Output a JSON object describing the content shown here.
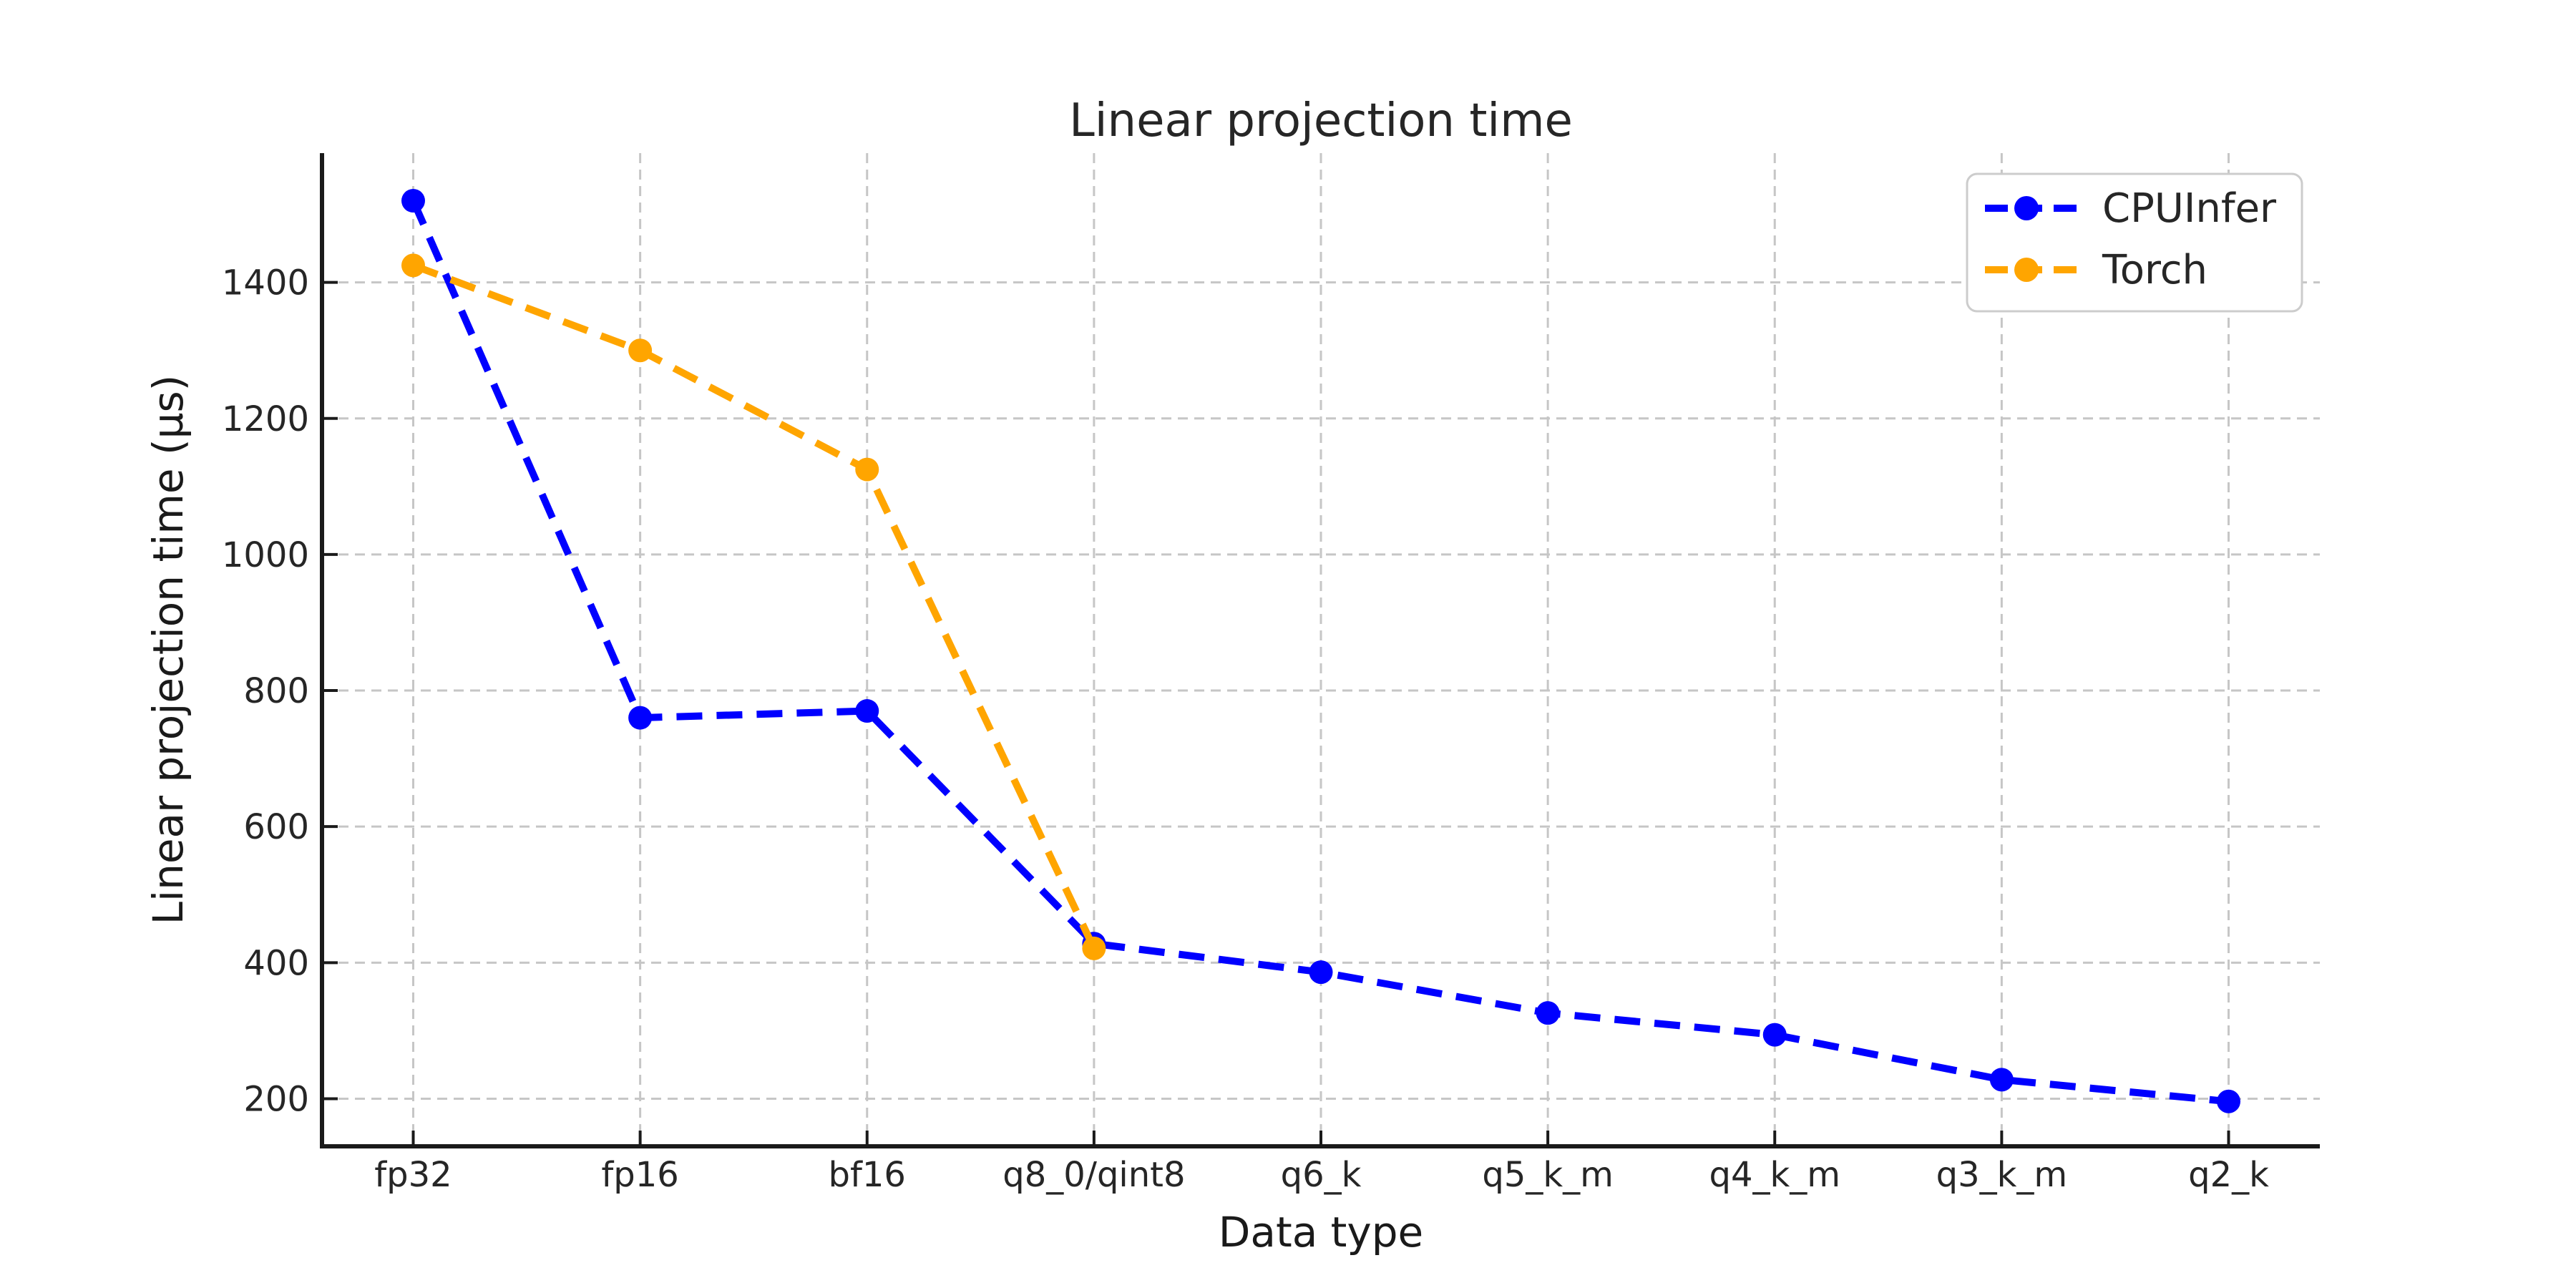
{
  "chart_data": {
    "type": "line",
    "title": "Linear projection time",
    "xlabel": "Data type",
    "ylabel": "Linear projection time (µs)",
    "categories": [
      "fp32",
      "fp16",
      "bf16",
      "q8_0/qint8",
      "q6_k",
      "q5_k_m",
      "q4_k_m",
      "q3_k_m",
      "q2_k"
    ],
    "series": [
      {
        "name": "CPUInfer",
        "color": "#0000ff",
        "values": [
          1520,
          760,
          770,
          428,
          386,
          326,
          294,
          228,
          196
        ]
      },
      {
        "name": "Torch",
        "color": "#ffa500",
        "values": [
          1425,
          1300,
          1125,
          421,
          null,
          null,
          null,
          null,
          null
        ]
      }
    ],
    "yticks": [
      200,
      400,
      600,
      800,
      1000,
      1200,
      1400
    ],
    "ylim": [
      130,
      1590
    ],
    "grid": true,
    "line_style": "dashed",
    "marker": "circle",
    "legend_position": "upper right",
    "grid_color": "#c6c6c6",
    "axis_color": "#1a1a1a",
    "text_color": "#262626"
  }
}
